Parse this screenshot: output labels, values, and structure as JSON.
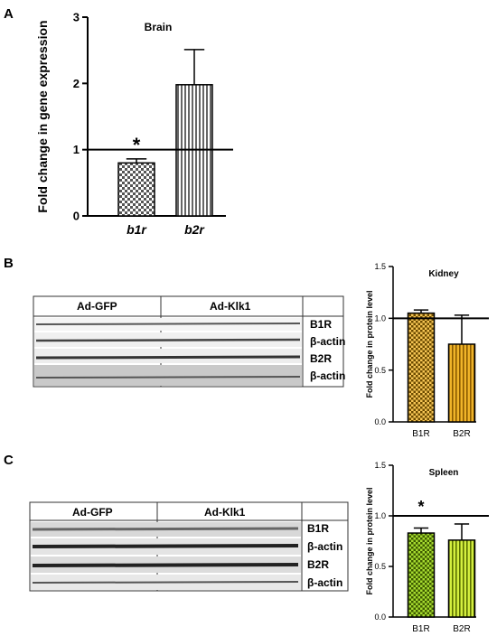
{
  "panels": {
    "A": {
      "letter": "A"
    },
    "B": {
      "letter": "B",
      "blot": {
        "group1": "Ad-GFP",
        "group2": "Ad-Klk1",
        "bands": [
          "B1R",
          "β-actin",
          "B2R",
          "β-actin"
        ]
      }
    },
    "C": {
      "letter": "C",
      "blot": {
        "group1": "Ad-GFP",
        "group2": "Ad-Klk1",
        "bands": [
          "B1R",
          "β-actin",
          "B2R",
          "β-actin"
        ]
      }
    }
  },
  "chart_data": [
    {
      "type": "bar",
      "title": "Brain",
      "ylabel": "Fold change in gene expression",
      "categories": [
        "b1r",
        "b2r"
      ],
      "values": [
        0.8,
        1.98
      ],
      "errors": [
        0.06,
        0.53
      ],
      "ylim": [
        0,
        3
      ],
      "yticks": [
        "0",
        "1",
        "2",
        "3"
      ],
      "reference_line": 1,
      "significance": {
        "category": "b1r",
        "label": "*"
      },
      "patterns": [
        "checker",
        "vstripe"
      ],
      "colors": [
        "#9e9e9e",
        "#9e9e9e"
      ]
    },
    {
      "type": "bar",
      "title": "Kidney",
      "ylabel": "Fold change in protein level",
      "categories": [
        "B1R",
        "B2R"
      ],
      "values": [
        1.05,
        0.75
      ],
      "errors": [
        0.03,
        0.28
      ],
      "ylim": [
        0,
        1.5
      ],
      "yticks": [
        "0.0",
        "0.5",
        "1.0",
        "1.5"
      ],
      "reference_line": 1,
      "significance": null,
      "patterns": [
        "checker",
        "vstripe"
      ],
      "colors": [
        "#f0b429",
        "#f0b429"
      ]
    },
    {
      "type": "bar",
      "title": "Spleen",
      "ylabel": "Fold change in protein level",
      "categories": [
        "B1R",
        "B2R"
      ],
      "values": [
        0.83,
        0.76
      ],
      "errors": [
        0.05,
        0.16
      ],
      "ylim": [
        0,
        1.5
      ],
      "yticks": [
        "0.0",
        "0.5",
        "1.0",
        "1.5"
      ],
      "reference_line": 1,
      "significance": {
        "category": "B1R",
        "label": "*"
      },
      "patterns": [
        "checker",
        "vstripe"
      ],
      "colors": [
        "#9cd62b",
        "#c8ea3a"
      ]
    }
  ]
}
